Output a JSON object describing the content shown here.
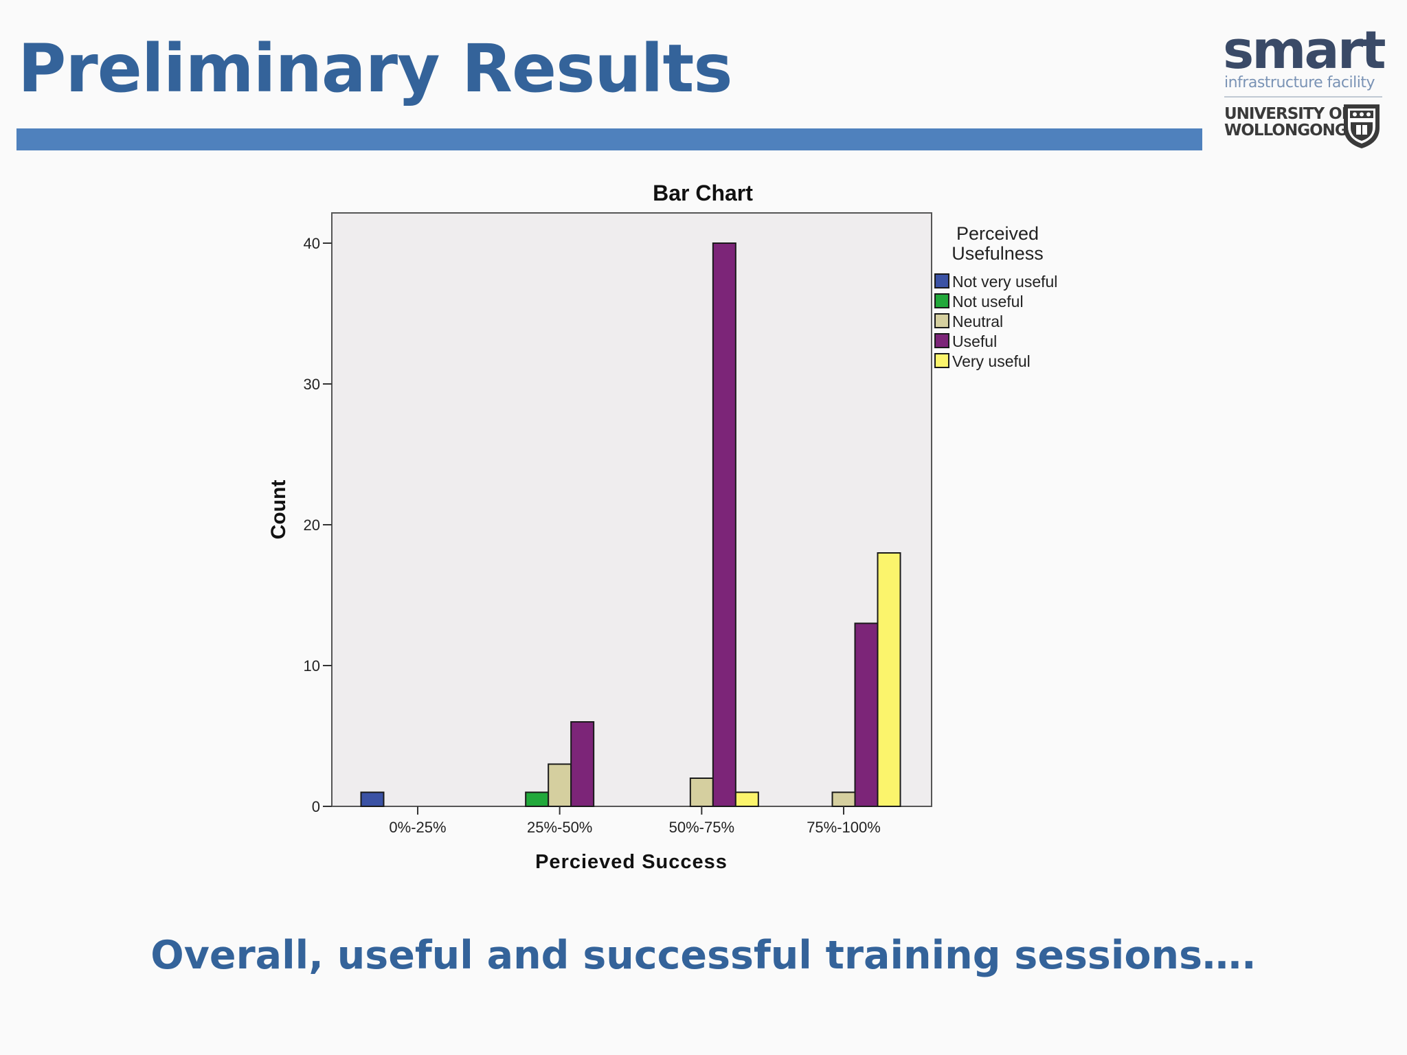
{
  "slide": {
    "title": "Preliminary Results",
    "conclusion": "Overall, useful and successful training sessions….",
    "logo": {
      "brand": "smart",
      "tagline": "infrastructure facility",
      "university_line1": "UNIVERSITY OF",
      "university_line2": "WOLLONGONG"
    }
  },
  "colors": {
    "title": "#34639a",
    "rule": "#4f81bd",
    "plot_background": "#efedee"
  },
  "chart_data": {
    "type": "bar",
    "title": "Bar Chart",
    "xlabel": "Percieved Success",
    "ylabel": "Count",
    "categories": [
      "0%-25%",
      "25%-50%",
      "50%-75%",
      "75%-100%"
    ],
    "ylim": [
      0,
      42
    ],
    "yticks": [
      0,
      10,
      20,
      30,
      40
    ],
    "grid": false,
    "legend_title": "Perceived Usefulness",
    "legend_position": "right",
    "series": [
      {
        "name": "Not very useful",
        "color": "#3b52a4",
        "values": [
          1,
          0,
          0,
          0
        ]
      },
      {
        "name": "Not useful",
        "color": "#22a83b",
        "values": [
          0,
          1,
          0,
          0
        ]
      },
      {
        "name": "Neutral",
        "color": "#d5cf9f",
        "values": [
          0,
          3,
          2,
          1
        ]
      },
      {
        "name": "Useful",
        "color": "#7c2578",
        "values": [
          0,
          6,
          40,
          13
        ]
      },
      {
        "name": "Very useful",
        "color": "#fbf46c",
        "values": [
          0,
          0,
          1,
          18
        ]
      }
    ]
  }
}
